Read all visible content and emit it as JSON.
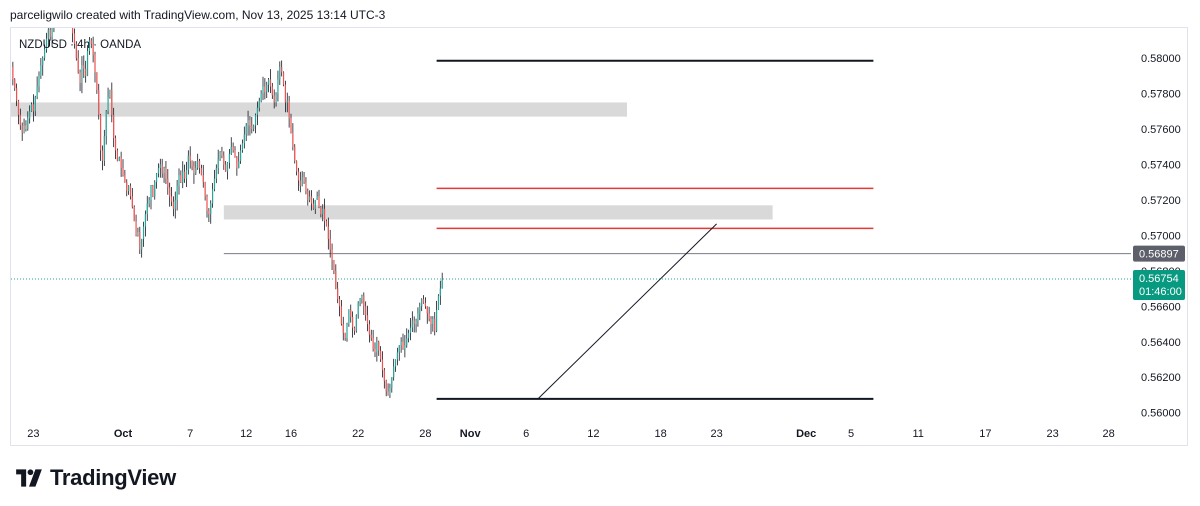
{
  "header": {
    "caption": "parceligwilo created with TradingView.com, Nov 13, 2025 13:14 UTC-3"
  },
  "footer": {
    "logo_text": "TradingView"
  },
  "colors": {
    "up": "#26a69a",
    "down": "#ef5350",
    "wick": "#131722",
    "zone": "#d9d9d9",
    "resistance": "#e53935",
    "level": "#131722",
    "current_price_bg": "#089981",
    "marker_price_bg": "#5d606b"
  },
  "chart_data": {
    "type": "candlestick",
    "title": "NZDUSD · 4h · OANDA",
    "symbol": "NZDUSD",
    "interval": "4h",
    "source": "OANDA",
    "y_axis": {
      "range": [
        0.5597,
        0.5817
      ],
      "ticks": [
        "0.58000",
        "0.57800",
        "0.57600",
        "0.57400",
        "0.57200",
        "0.57000",
        "0.56800",
        "0.56600",
        "0.56400",
        "0.56200",
        "0.56000"
      ]
    },
    "x_axis": {
      "range": [
        "2025-09-21",
        "2025-12-30"
      ],
      "ticks": [
        {
          "label": "23",
          "date": "2025-09-23",
          "bold": false
        },
        {
          "label": "Oct",
          "date": "2025-10-01",
          "bold": true
        },
        {
          "label": "7",
          "date": "2025-10-07",
          "bold": false
        },
        {
          "label": "12",
          "date": "2025-10-12",
          "bold": false
        },
        {
          "label": "16",
          "date": "2025-10-16",
          "bold": false
        },
        {
          "label": "22",
          "date": "2025-10-22",
          "bold": false
        },
        {
          "label": "28",
          "date": "2025-10-28",
          "bold": false
        },
        {
          "label": "Nov",
          "date": "2025-11-01",
          "bold": true
        },
        {
          "label": "6",
          "date": "2025-11-06",
          "bold": false
        },
        {
          "label": "12",
          "date": "2025-11-12",
          "bold": false
        },
        {
          "label": "18",
          "date": "2025-11-18",
          "bold": false
        },
        {
          "label": "23",
          "date": "2025-11-23",
          "bold": false
        },
        {
          "label": "Dec",
          "date": "2025-12-01",
          "bold": true
        },
        {
          "label": "5",
          "date": "2025-12-05",
          "bold": false
        },
        {
          "label": "11",
          "date": "2025-12-11",
          "bold": false
        },
        {
          "label": "17",
          "date": "2025-12-17",
          "bold": false
        },
        {
          "label": "23",
          "date": "2025-12-23",
          "bold": false
        },
        {
          "label": "28",
          "date": "2025-12-28",
          "bold": false
        }
      ]
    },
    "series": {
      "start": "2025-09-21",
      "bar_interval": "4h",
      "closes": [
        0.5795,
        0.5788,
        0.5783,
        0.5776,
        0.5768,
        0.5762,
        0.5758,
        0.5762,
        0.576,
        0.5766,
        0.577,
        0.5774,
        0.577,
        0.5778,
        0.5784,
        0.579,
        0.5796,
        0.58,
        0.5805,
        0.5811,
        0.5816,
        0.5812,
        0.582,
        0.5826,
        0.583,
        0.5828,
        0.5834,
        0.5838,
        0.5832,
        0.5836,
        0.5832,
        0.5826,
        0.582,
        0.5814,
        0.5808,
        0.58,
        0.5792,
        0.5786,
        0.5796,
        0.5794,
        0.579,
        0.5804,
        0.581,
        0.5808,
        0.5802,
        0.5792,
        0.5782,
        0.5768,
        0.5748,
        0.5742,
        0.5756,
        0.577,
        0.5778,
        0.5782,
        0.5768,
        0.5755,
        0.5748,
        0.5742,
        0.5744,
        0.5738,
        0.5734,
        0.573,
        0.5725,
        0.5728,
        0.5722,
        0.5716,
        0.5708,
        0.57,
        0.5702,
        0.5692,
        0.5698,
        0.5705,
        0.5712,
        0.5718,
        0.572,
        0.5728,
        0.5722,
        0.573,
        0.5735,
        0.5738,
        0.574,
        0.5735,
        0.5738,
        0.5732,
        0.5727,
        0.5722,
        0.5719,
        0.5715,
        0.572,
        0.5728,
        0.5734,
        0.573,
        0.5736,
        0.5732,
        0.5737,
        0.5745,
        0.5742,
        0.5739,
        0.5735,
        0.5738,
        0.5742,
        0.5738,
        0.5734,
        0.573,
        0.5722,
        0.5714,
        0.5712,
        0.5718,
        0.5726,
        0.5732,
        0.5738,
        0.5743,
        0.5747,
        0.5745,
        0.574,
        0.5736,
        0.5741,
        0.5746,
        0.575,
        0.5748,
        0.5744,
        0.5738,
        0.5742,
        0.5748,
        0.5752,
        0.5757,
        0.5762,
        0.5765,
        0.5762,
        0.576,
        0.5762,
        0.5768,
        0.5772,
        0.5776,
        0.578,
        0.5784,
        0.5781,
        0.5785,
        0.5788,
        0.5784,
        0.5779,
        0.5775,
        0.578,
        0.5788,
        0.5795,
        0.5792,
        0.5785,
        0.5775,
        0.5776,
        0.5766,
        0.5758,
        0.575,
        0.5742,
        0.5736,
        0.5731,
        0.5728,
        0.5733,
        0.573,
        0.5725,
        0.572,
        0.5722,
        0.5718,
        0.5715,
        0.572,
        0.5722,
        0.5716,
        0.5712,
        0.5715,
        0.5708,
        0.5705,
        0.5698,
        0.5692,
        0.5686,
        0.568,
        0.567,
        0.5664,
        0.566,
        0.565,
        0.5645,
        0.5642,
        0.565,
        0.5658,
        0.5654,
        0.5648,
        0.5646,
        0.5655,
        0.5662,
        0.5664,
        0.5666,
        0.566,
        0.5655,
        0.565,
        0.5644,
        0.5642,
        0.5636,
        0.5634,
        0.564,
        0.5635,
        0.563,
        0.5624,
        0.5618,
        0.5612,
        0.561,
        0.5614,
        0.562,
        0.5626,
        0.563,
        0.5634,
        0.5638,
        0.564,
        0.5636,
        0.5638,
        0.5642,
        0.5645,
        0.5648,
        0.5652,
        0.565,
        0.5652,
        0.5656,
        0.566,
        0.5664,
        0.5662,
        0.566,
        0.5656,
        0.5653,
        0.565,
        0.5653,
        0.5646,
        0.5658,
        0.5666,
        0.567,
        0.5675
      ]
    },
    "zones": [
      {
        "from": "2025-09-21",
        "to": "2025-11-15",
        "top": 0.5775,
        "bottom": 0.5767
      },
      {
        "from": "2025-10-10",
        "to": "2025-11-28",
        "top": 0.5717,
        "bottom": 0.5709
      }
    ],
    "levels": [
      {
        "price": 0.57985,
        "from": "2025-10-29",
        "to": "2025-12-07",
        "style": "thick",
        "color": "level"
      },
      {
        "price": 0.57265,
        "from": "2025-10-29",
        "to": "2025-12-07",
        "style": "medium",
        "color": "resistance"
      },
      {
        "price": 0.5704,
        "from": "2025-10-29",
        "to": "2025-12-07",
        "style": "medium",
        "color": "resistance"
      },
      {
        "price": 0.56897,
        "from": "2025-10-10",
        "to": "2025-12-30",
        "style": "thin",
        "color": "level"
      },
      {
        "price": 0.56078,
        "from": "2025-10-29",
        "to": "2025-12-07",
        "style": "thick",
        "color": "level"
      }
    ],
    "trendline": {
      "from": {
        "date": "2025-11-07",
        "price": 0.56075
      },
      "to": {
        "date": "2025-11-23",
        "price": 0.57065
      }
    },
    "price_labels": {
      "marker": {
        "price": 0.56897,
        "text": "0.56897"
      },
      "current": {
        "price": 0.56754,
        "text": "0.56754",
        "countdown": "01:46:00"
      }
    },
    "grid": false,
    "legend": "top-left"
  }
}
